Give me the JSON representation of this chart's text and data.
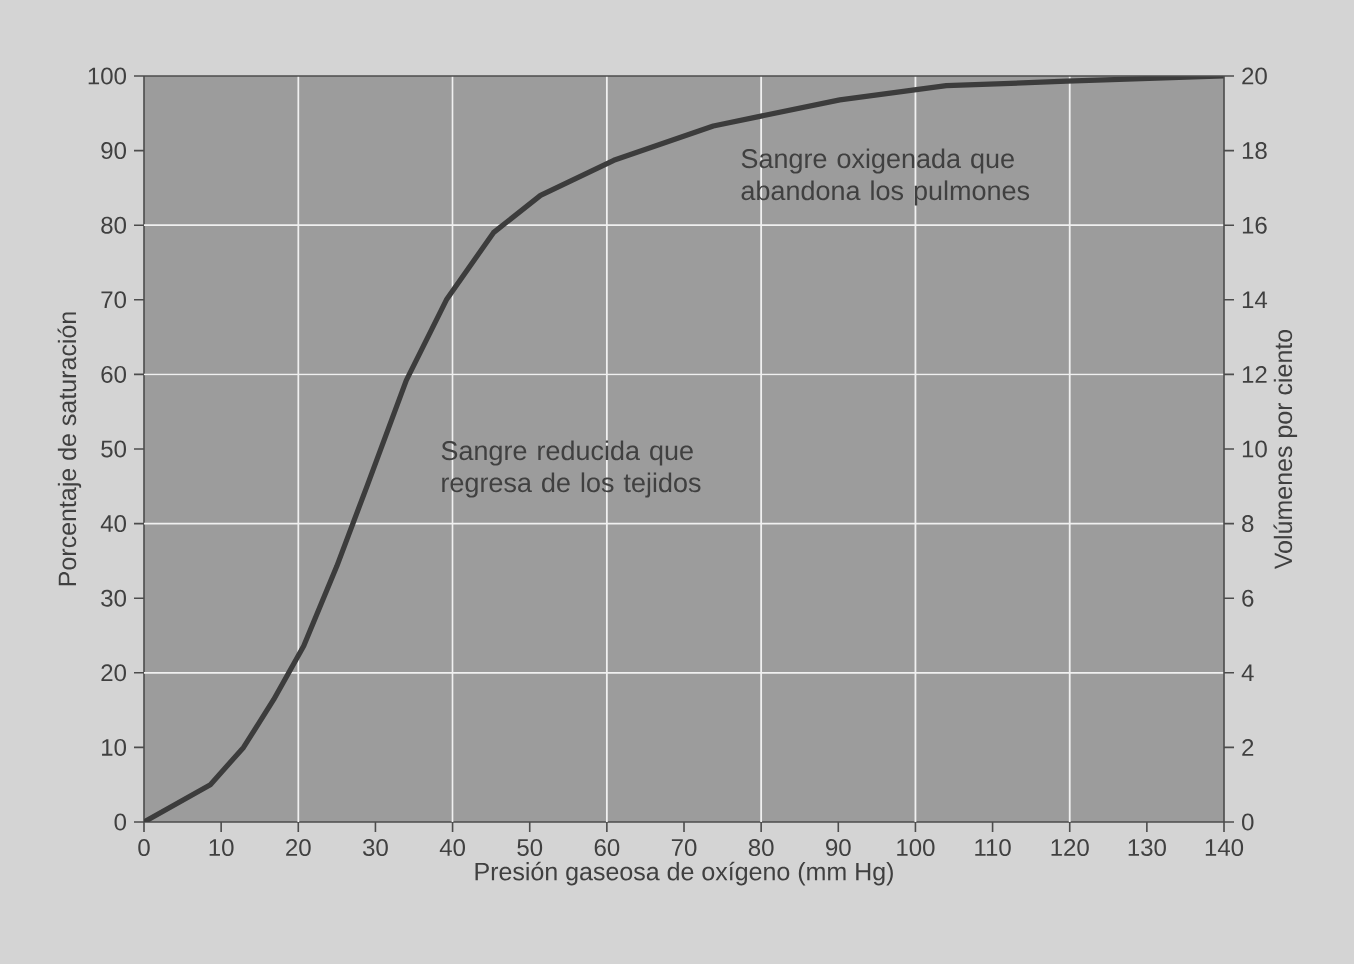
{
  "chart_data": {
    "type": "line",
    "xlabel": "Presión gaseosa de oxígeno (mm Hg)",
    "ylabel": "Porcentaje de saturación",
    "y2label": "Volúmenes por ciento",
    "x": [
      0,
      8.6,
      12.9,
      16.8,
      20.7,
      25,
      28.9,
      34,
      39.2,
      45.3,
      51.4,
      60.9,
      73.8,
      90.2,
      104,
      119.6,
      140
    ],
    "series": [
      {
        "color": "#3c3c3c",
        "values": [
          0,
          5,
          10,
          16.4,
          23.6,
          34.3,
          45,
          59.2,
          70,
          79,
          84,
          88.7,
          93.3,
          96.8,
          98.7,
          99.3,
          100
        ]
      }
    ],
    "xlim": [
      0,
      140
    ],
    "ylim": [
      0,
      100
    ],
    "y2lim": [
      0,
      20
    ],
    "xticks": [
      0,
      10,
      20,
      30,
      40,
      50,
      60,
      70,
      80,
      90,
      100,
      110,
      120,
      130,
      140
    ],
    "yticks": [
      0,
      10,
      20,
      30,
      40,
      50,
      60,
      70,
      80,
      90,
      100
    ],
    "y2ticks": [
      0,
      2,
      4,
      6,
      8,
      10,
      12,
      14,
      16,
      18,
      20
    ],
    "grid": true,
    "marker": "none",
    "line_style": "solid",
    "annotations": [
      "Sangre reducida que regresa de los tejidos",
      "Sangre oxigenada que abandona los pulmones"
    ]
  }
}
